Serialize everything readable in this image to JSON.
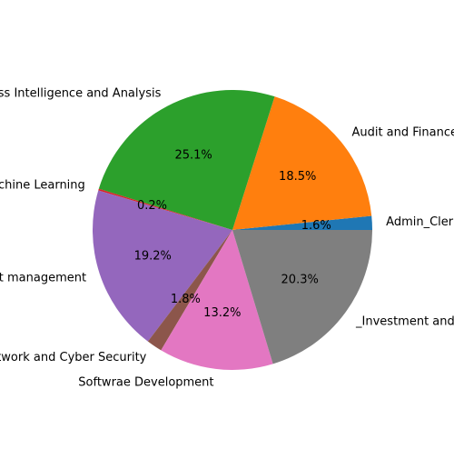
{
  "chart_data": {
    "type": "pie",
    "title": "",
    "start_angle_deg": 0,
    "direction": "counterclockwise",
    "slices": [
      {
        "label": "Admin_Clerical",
        "value": 1.6,
        "pct_label": "1.6%",
        "color": "#1f77b4"
      },
      {
        "label": "Audit and Finance",
        "value": 18.5,
        "pct_label": "18.5%",
        "color": "#ff7f0e"
      },
      {
        "label": "Business Intelligence and Analysis",
        "value": 25.1,
        "pct_label": "25.1%",
        "color": "#2ca02c"
      },
      {
        "label": "Machine Learning",
        "value": 0.2,
        "pct_label": "0.2%",
        "color": "#d62728"
      },
      {
        "label": "Project management",
        "value": 19.2,
        "pct_label": "19.2%",
        "color": "#9467bd"
      },
      {
        "label": "Network and Cyber Security",
        "value": 1.8,
        "pct_label": "1.8%",
        "color": "#8c564b"
      },
      {
        "label": "Softwrae Development",
        "value": 13.2,
        "pct_label": "13.2%",
        "color": "#e377c2"
      },
      {
        "label": "_Investment and Finance",
        "value": 20.3,
        "pct_label": "20.3%",
        "color": "#7f7f7f"
      }
    ]
  }
}
